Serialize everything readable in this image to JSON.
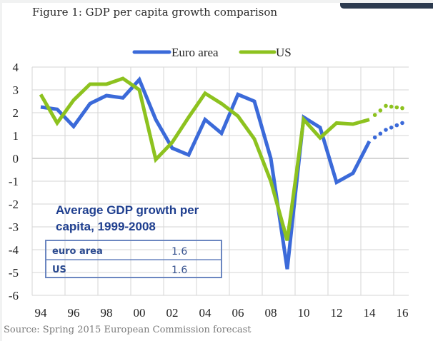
{
  "figure_title": "Figure 1: GDP per capita growth comparison",
  "source": "Source: Spring 2015 European Commission forecast",
  "colors": {
    "euro_area": "#3b6ad9",
    "us": "#8dc21f",
    "grid": "#d6d6d6",
    "inset": "#6b86c0"
  },
  "chart_data": {
    "type": "line",
    "title": "Figure 1: GDP per capita growth comparison",
    "xlabel": "",
    "ylabel": "",
    "x": [
      1994,
      1995,
      1996,
      1997,
      1998,
      1999,
      2000,
      2001,
      2002,
      2003,
      2004,
      2005,
      2006,
      2007,
      2008,
      2009,
      2010,
      2011,
      2012,
      2013,
      2014,
      2015,
      2016
    ],
    "x_tick_labels": [
      "94",
      "96",
      "98",
      "00",
      "02",
      "04",
      "06",
      "08",
      "10",
      "12",
      "14",
      "16"
    ],
    "y_ticks": [
      4,
      3,
      2,
      1,
      0,
      -1,
      -2,
      -3,
      -4,
      -5,
      -6
    ],
    "ylim": [
      -6,
      4
    ],
    "xlim": [
      1993.5,
      2016.5
    ],
    "grid": true,
    "legend": {
      "placement": "top-center",
      "entries": [
        "Euro area",
        "US"
      ]
    },
    "forecast_from": 2014,
    "series": [
      {
        "name": "Euro area",
        "color": "#3b6ad9",
        "values": [
          2.25,
          2.15,
          1.4,
          2.4,
          2.75,
          2.65,
          3.45,
          1.7,
          0.45,
          0.15,
          1.7,
          1.1,
          2.8,
          2.5,
          0.0,
          -4.85,
          1.8,
          1.35,
          -1.05,
          -0.65,
          0.75,
          1.25,
          1.55
        ]
      },
      {
        "name": "US",
        "color": "#8dc21f",
        "values": [
          2.8,
          1.55,
          2.55,
          3.25,
          3.25,
          3.5,
          3.0,
          -0.05,
          0.7,
          1.8,
          2.85,
          2.4,
          1.85,
          0.85,
          -1.0,
          -3.6,
          1.7,
          0.9,
          1.55,
          1.5,
          1.7,
          2.3,
          2.2
        ]
      }
    ],
    "annotation": {
      "title_line1": "Average GDP growth per",
      "title_line2": "capita, 1999-2008",
      "rows": [
        {
          "label": "euro area",
          "value": "1.6"
        },
        {
          "label": "US",
          "value": "1.6"
        }
      ]
    }
  }
}
